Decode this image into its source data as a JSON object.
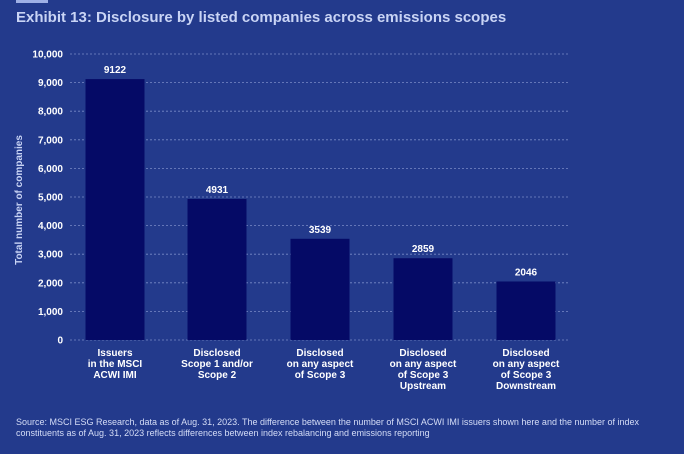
{
  "page": {
    "title": "Exhibit 13: Disclosure by listed companies across emissions scopes",
    "source": "Source: MSCI ESG Research, data as of Aug. 31, 2023. The difference between the number of MSCI ACWI IMI issuers shown here and the number of index constituents as of Aug. 31, 2023 reflects differences between index rebalancing and emissions reporting"
  },
  "colors": {
    "background": "#233a8c",
    "bar": "#050a66",
    "grid": "#8f9fd6",
    "tick_text": "#ffffff",
    "axis_text": "#c9d4f5"
  },
  "chart_data": {
    "type": "bar",
    "title": "",
    "xlabel": "",
    "ylabel": "Total number of companies",
    "ylim": [
      0,
      10000
    ],
    "yticks": [
      0,
      1000,
      2000,
      3000,
      4000,
      5000,
      6000,
      7000,
      8000,
      9000,
      10000
    ],
    "ytick_labels": [
      "0",
      "1,000",
      "2,000",
      "3,000",
      "4,000",
      "5,000",
      "6,000",
      "7,000",
      "8,000",
      "9,000",
      "10,000"
    ],
    "grid": true,
    "categories": [
      [
        "Issuers",
        "in the MSCI",
        "ACWI IMI"
      ],
      [
        "Disclosed",
        "Scope 1 and/or",
        "Scope 2"
      ],
      [
        "Disclosed",
        "on any aspect",
        "of Scope 3"
      ],
      [
        "Disclosed",
        "on any aspect",
        "of Scope 3",
        "Upstream"
      ],
      [
        "Disclosed",
        "on any aspect",
        "of Scope 3",
        "Downstream"
      ]
    ],
    "values": [
      9122,
      4931,
      3539,
      2859,
      2046
    ],
    "data_labels": [
      "9122",
      "4931",
      "3539",
      "2859",
      "2046"
    ]
  }
}
